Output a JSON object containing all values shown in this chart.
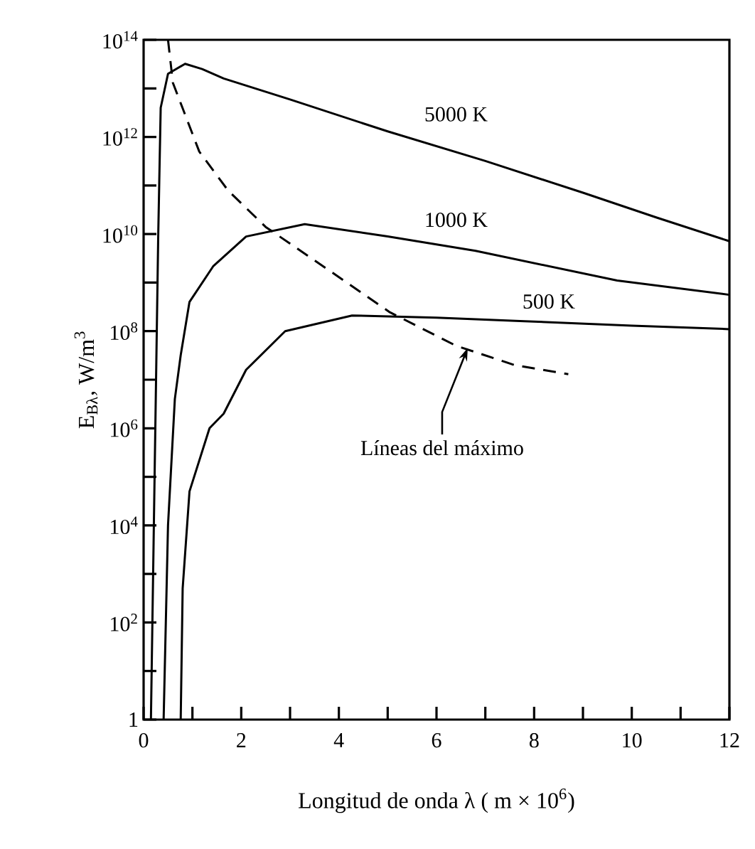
{
  "chart_data": {
    "type": "line",
    "xlabel": "Longitud de onda λ ( m × 10$^{6}$)",
    "ylabel": "E$_{Bλ}$,  W/m$^{3}$",
    "log": "y",
    "marker": "none",
    "line_style": "solid",
    "xlim": [
      0,
      12
    ],
    "ylim": [
      1,
      100000000000000.0
    ],
    "xticks": [
      0,
      {
        "value": 1,
        "label": null
      },
      2,
      {
        "value": 3,
        "label": null
      },
      4,
      {
        "value": 5,
        "label": null
      },
      6,
      {
        "value": 7,
        "label": null
      },
      8,
      {
        "value": 9,
        "label": null
      },
      10,
      {
        "value": 11,
        "label": null
      },
      12
    ],
    "yticks": [
      1,
      {
        "value": 10,
        "label": null
      },
      {
        "value": 100,
        "label": "10$^{2}$"
      },
      {
        "value": 1000,
        "label": null
      },
      {
        "value": 10000,
        "label": "10$^{4}$"
      },
      {
        "value": 100000,
        "label": null
      },
      {
        "value": 1000000,
        "label": "10$^{6}$"
      },
      {
        "value": 10000000,
        "label": null
      },
      {
        "value": 100000000,
        "label": "10$^{8}$"
      },
      {
        "value": 1000000000,
        "label": null
      },
      {
        "value": 10000000000,
        "label": "10$^{10}$"
      },
      {
        "value": 100000000000,
        "label": null
      },
      {
        "value": 1000000000000,
        "label": "10$^{12}$"
      },
      {
        "value": 10000000000000,
        "label": null
      },
      {
        "value": 100000000000000,
        "label": "10$^{14}$"
      }
    ],
    "series": [
      {
        "name": "5000 K",
        "color": "#000000",
        "x": [
          0.15,
          0.3,
          0.35,
          0.5,
          0.85,
          1.2,
          1.64,
          3,
          5,
          7,
          9,
          10.5,
          12
        ],
        "values": [
          1,
          10000000000.0,
          4000000000000.0,
          20000000000000.0,
          32000000000000.0,
          25000000000000.0,
          16000000000000.0,
          5900000000000.0,
          1300000000000.0,
          320000000000.0,
          71000000000.0,
          22000000000.0,
          7100000000.0
        ]
      },
      {
        "name": "1000 K",
        "color": "#000000",
        "x": [
          0.41,
          0.5,
          0.64,
          0.76,
          0.94,
          1.43,
          2.1,
          3.3,
          5,
          6.8,
          9.7,
          12
        ],
        "values": [
          1,
          10000.0,
          4000000.0,
          32000000.0,
          400000000.0,
          2200000000.0,
          8900000000.0,
          16000000000.0,
          8900000000.0,
          4500000000.0,
          1100000000.0,
          560000000.0
        ]
      },
      {
        "name": "500 K",
        "color": "#000000",
        "x": [
          0.76,
          0.8,
          0.94,
          1.35,
          1.64,
          2.1,
          2.9,
          4.27,
          6,
          7.8,
          10,
          12
        ],
        "values": [
          1,
          500,
          50000.0,
          1000000.0,
          2000000.0,
          16000000.0,
          100000000.0,
          210000000.0,
          190000000.0,
          160000000.0,
          130000000.0,
          110000000.0
        ]
      },
      {
        "color": "#000000",
        "line_style": "dashed",
        "x": [
          0.5,
          0.6,
          1.14,
          1.73,
          2.5,
          3.87,
          5.03,
          6.4,
          7.6,
          8.7
        ],
        "values": [
          100000000000000.0,
          13000000000000.0,
          500000000000.0,
          79000000000.0,
          14000000000.0,
          1600000000.0,
          250000000.0,
          50000000.0,
          20000000.0,
          13000000.0
        ]
      }
    ],
    "annotations": [
      {
        "text": "Líneas del máximo",
        "x": 6.64,
        "y": 45000000.0
      }
    ]
  }
}
